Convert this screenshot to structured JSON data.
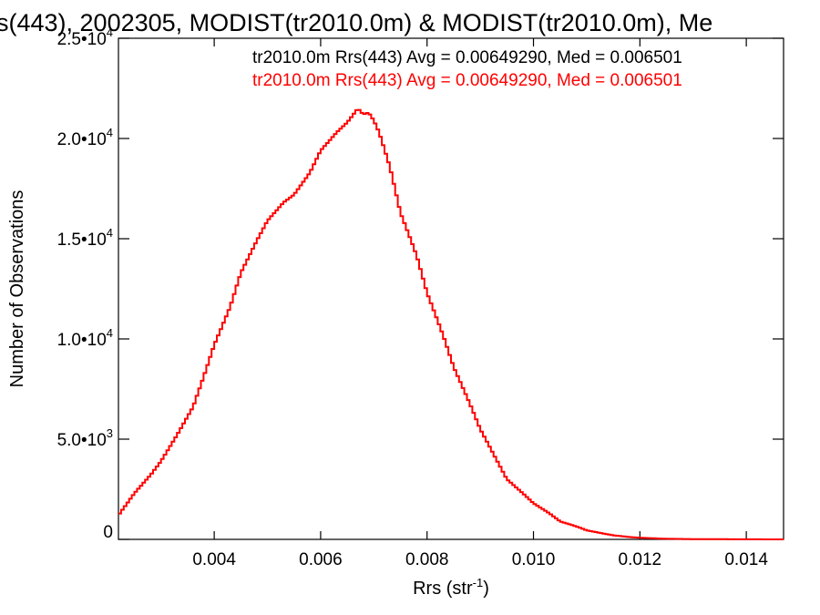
{
  "chart_data": {
    "type": "line",
    "title": "s(443), 2002305, MODIST(tr2010.0m) & MODIST(tr2010.0m), Me",
    "xlabel": "Rrs (str",
    "xlabel_sup": "-1",
    "xlabel_end": ")",
    "ylabel": "Number of Observations",
    "xlim": [
      0.0022,
      0.0147
    ],
    "ylim": [
      0,
      25000
    ],
    "x_ticks": [
      {
        "value": 0.004,
        "label": "0.004"
      },
      {
        "value": 0.006,
        "label": "0.006"
      },
      {
        "value": 0.008,
        "label": "0.008"
      },
      {
        "value": 0.01,
        "label": "0.010"
      },
      {
        "value": 0.012,
        "label": "0.012"
      },
      {
        "value": 0.014,
        "label": "0.014"
      }
    ],
    "y_ticks": [
      {
        "value": 0,
        "mant": "0",
        "exp": ""
      },
      {
        "value": 5000,
        "mant": "5.0•10",
        "exp": "3"
      },
      {
        "value": 10000,
        "mant": "1.0•10",
        "exp": "4"
      },
      {
        "value": 15000,
        "mant": "1.5•10",
        "exp": "4"
      },
      {
        "value": 20000,
        "mant": "2.0•10",
        "exp": "4"
      },
      {
        "value": 25000,
        "mant": "2.5•10",
        "exp": "4"
      }
    ],
    "legend": [
      {
        "text": "tr2010.0m Rrs(443) Avg = 0.00649290, Med = 0.006501",
        "color": "#000000"
      },
      {
        "text": "tr2010.0m Rrs(443) Avg = 0.00649290, Med = 0.006501",
        "color": "#ff0000"
      }
    ],
    "series": [
      {
        "color": "#ff0000",
        "x": [
          0.0022,
          0.0025,
          0.0028,
          0.003,
          0.0033,
          0.0036,
          0.0038,
          0.004,
          0.0043,
          0.0045,
          0.0048,
          0.005,
          0.0053,
          0.0055,
          0.0058,
          0.006,
          0.0063,
          0.0065,
          0.0067,
          0.0068,
          0.0069,
          0.007,
          0.0071,
          0.0073,
          0.0075,
          0.0078,
          0.008,
          0.0083,
          0.0085,
          0.0088,
          0.009,
          0.0093,
          0.0095,
          0.0098,
          0.01,
          0.0103,
          0.0105,
          0.0108,
          0.011,
          0.0113,
          0.0115,
          0.0118,
          0.012,
          0.0123,
          0.0125,
          0.013,
          0.0135,
          0.014,
          0.0147
        ],
        "y": [
          1200,
          2300,
          3200,
          3900,
          5200,
          6600,
          8100,
          9700,
          11600,
          13300,
          14900,
          15900,
          16800,
          17200,
          18300,
          19400,
          20300,
          20800,
          21500,
          21200,
          21300,
          20900,
          20300,
          18600,
          16300,
          14200,
          12300,
          10200,
          8600,
          6800,
          5500,
          4000,
          3000,
          2300,
          1800,
          1300,
          900,
          650,
          450,
          300,
          200,
          120,
          80,
          50,
          30,
          15,
          8,
          4,
          0
        ]
      }
    ]
  }
}
